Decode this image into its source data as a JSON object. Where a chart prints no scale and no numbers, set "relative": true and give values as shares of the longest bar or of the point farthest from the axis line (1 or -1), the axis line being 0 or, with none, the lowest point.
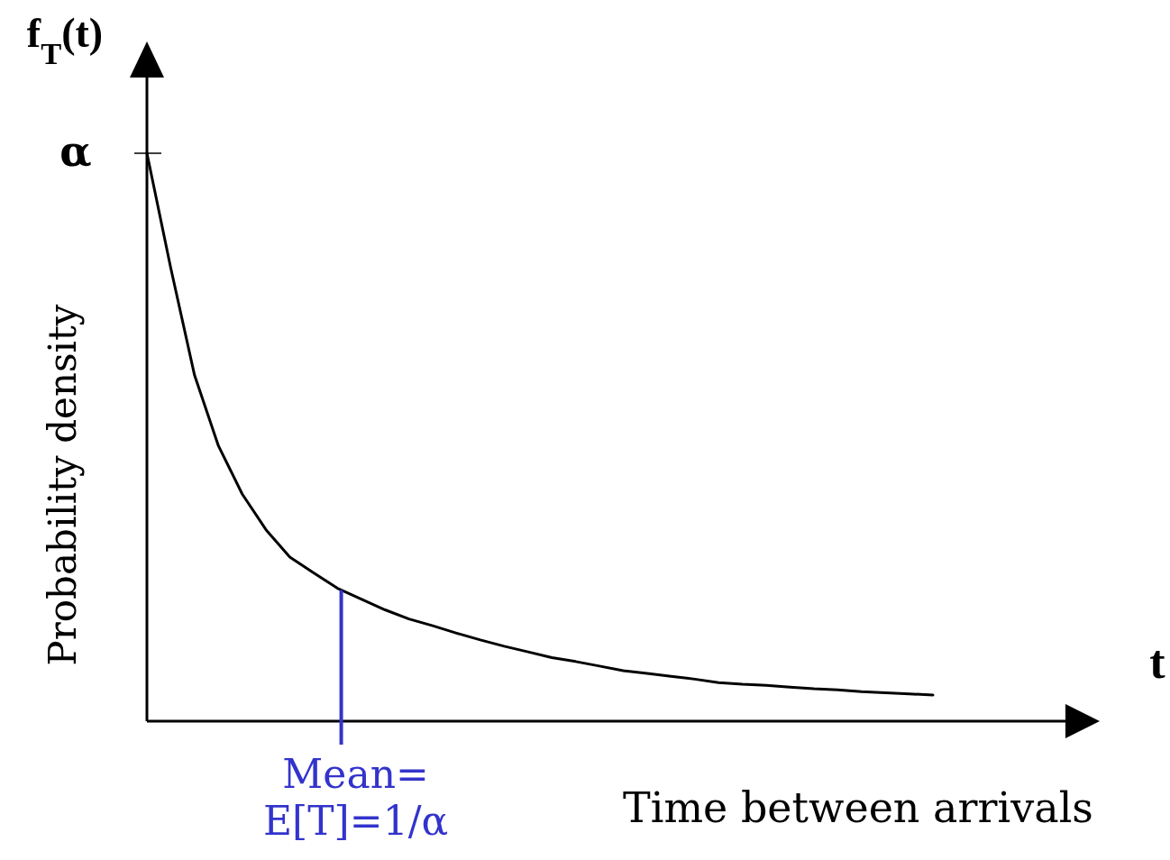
{
  "chart_data": {
    "type": "line",
    "title": "f$_{T}$(t)",
    "xlabel": "Time between arrivals",
    "ylabel": "Probability density",
    "relative": true,
    "categories": [
      null,
      null,
      null,
      null,
      null,
      null,
      null,
      null,
      null,
      null,
      null,
      null,
      null,
      null,
      null,
      null,
      null,
      null,
      null,
      null,
      null,
      null,
      null,
      null,
      null,
      null,
      null,
      null,
      null,
      null,
      null,
      null,
      null,
      null,
      null,
      null,
      null,
      null,
      null,
      null,
      null
    ],
    "series": [
      {
        "color": "#000000",
        "values": [
          1,
          0.798,
          0.609,
          0.485,
          0.4,
          0.337,
          0.289,
          0.261,
          0.234,
          0.215,
          0.196,
          0.18,
          0.168,
          0.155,
          0.143,
          0.132,
          0.122,
          0.112,
          0.105,
          0.097,
          0.089,
          0.084,
          0.079,
          0.074,
          0.068,
          0.065,
          0.063,
          0.06,
          0.057,
          0.055,
          0.052,
          0.05,
          0.048,
          0.046,
          null,
          null,
          null,
          null,
          null,
          null,
          null
        ]
      }
    ],
    "annotations": [
      "α",
      "Mean=\nE[T]=1/α",
      "t"
    ],
    "marker": "none",
    "line_style": "solid"
  }
}
